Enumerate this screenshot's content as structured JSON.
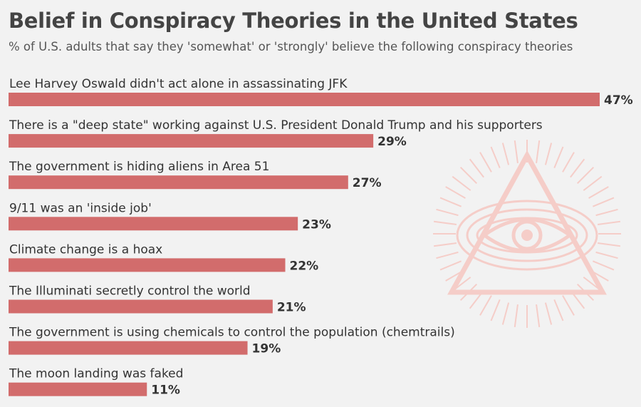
{
  "header": {
    "title": "Belief in Conspiracy Theories in the United States",
    "subtitle": "% of U.S. adults that say they 'somewhat' or 'strongly' believe the following conspiracy theories"
  },
  "colors": {
    "bar": "#d26c6c",
    "illustration": "#f5cdc8",
    "background": "#f2f2f2"
  },
  "illustration": {
    "icon": "all-seeing-eye-pyramid-icon"
  },
  "chart_data": {
    "type": "bar",
    "orientation": "horizontal",
    "categories": [
      "Lee Harvey Oswald didn't act alone in assassinating JFK",
      "There is a \"deep state\" working against U.S. President Donald Trump and his supporters",
      "The government is hiding aliens in Area 51",
      "9/11 was an 'inside job'",
      "Climate change is a hoax",
      "The Illuminati secretly control the world",
      "The government is using chemicals to control the population (chemtrails)",
      "The moon landing was faked"
    ],
    "values": [
      47,
      29,
      27,
      23,
      22,
      21,
      19,
      11
    ],
    "value_labels": [
      "47%",
      "29%",
      "27%",
      "23%",
      "22%",
      "21%",
      "19%",
      "11%"
    ],
    "xlim": [
      0,
      47
    ],
    "grid": false
  }
}
